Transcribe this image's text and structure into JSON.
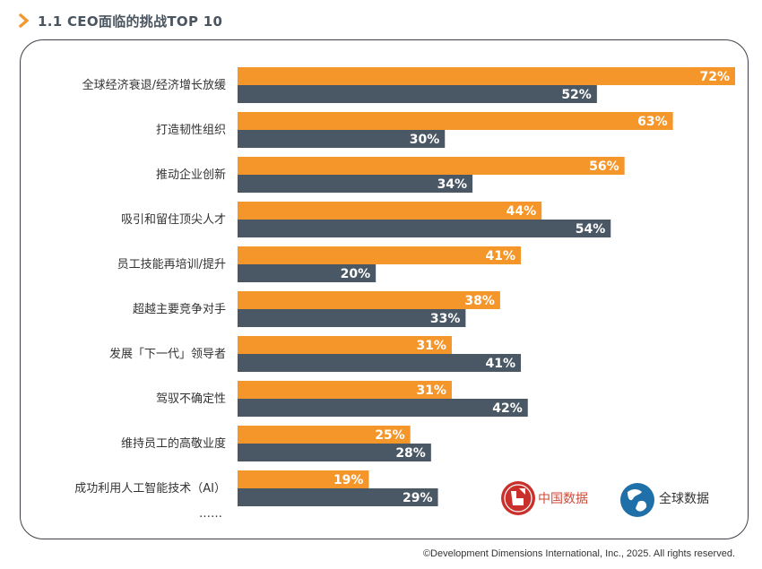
{
  "header": {
    "title": "1.1 CEO面临的挑战TOP 10"
  },
  "legend": [
    {
      "label": "中国数据",
      "icon": "china-data-icon",
      "color": "#c9302c"
    },
    {
      "label": "全球数据",
      "icon": "globe-icon",
      "color": "#1f6fa8"
    }
  ],
  "ellipsis": "……",
  "footer": {
    "copyright": "©Development Dimensions International, Inc., 2025. All rights reserved."
  },
  "colors": {
    "china": "#f5962a",
    "global": "#4a5764"
  },
  "chart_data": {
    "type": "bar",
    "orientation": "horizontal",
    "categories": [
      "全球经济衰退/经济增长放缓",
      "打造韧性组织",
      "推动企业创新",
      "吸引和留住顶尖人才",
      "员工技能再培训/提升",
      "超越主要竞争对手",
      "发展「下一代」领导者",
      "驾驭不确定性",
      "维持员工的高敬业度",
      "成功利用人工智能技术（AI）"
    ],
    "series": [
      {
        "name": "中国数据",
        "values": [
          72,
          63,
          56,
          44,
          41,
          38,
          31,
          31,
          25,
          19
        ],
        "labels": [
          "72%",
          "63%",
          "56%",
          "44%",
          "41%",
          "38%",
          "31%",
          "31%",
          "25%",
          "19%"
        ]
      },
      {
        "name": "全球数据",
        "values": [
          52,
          30,
          34,
          54,
          20,
          33,
          41,
          42,
          28,
          29
        ],
        "labels": [
          "52%",
          "30%",
          "34%",
          "54%",
          "20%",
          "33%",
          "41%",
          "42%",
          "28%",
          "29%"
        ]
      }
    ],
    "xlim": [
      0,
      72
    ],
    "grid": false,
    "legend_position": "bottom-right"
  }
}
